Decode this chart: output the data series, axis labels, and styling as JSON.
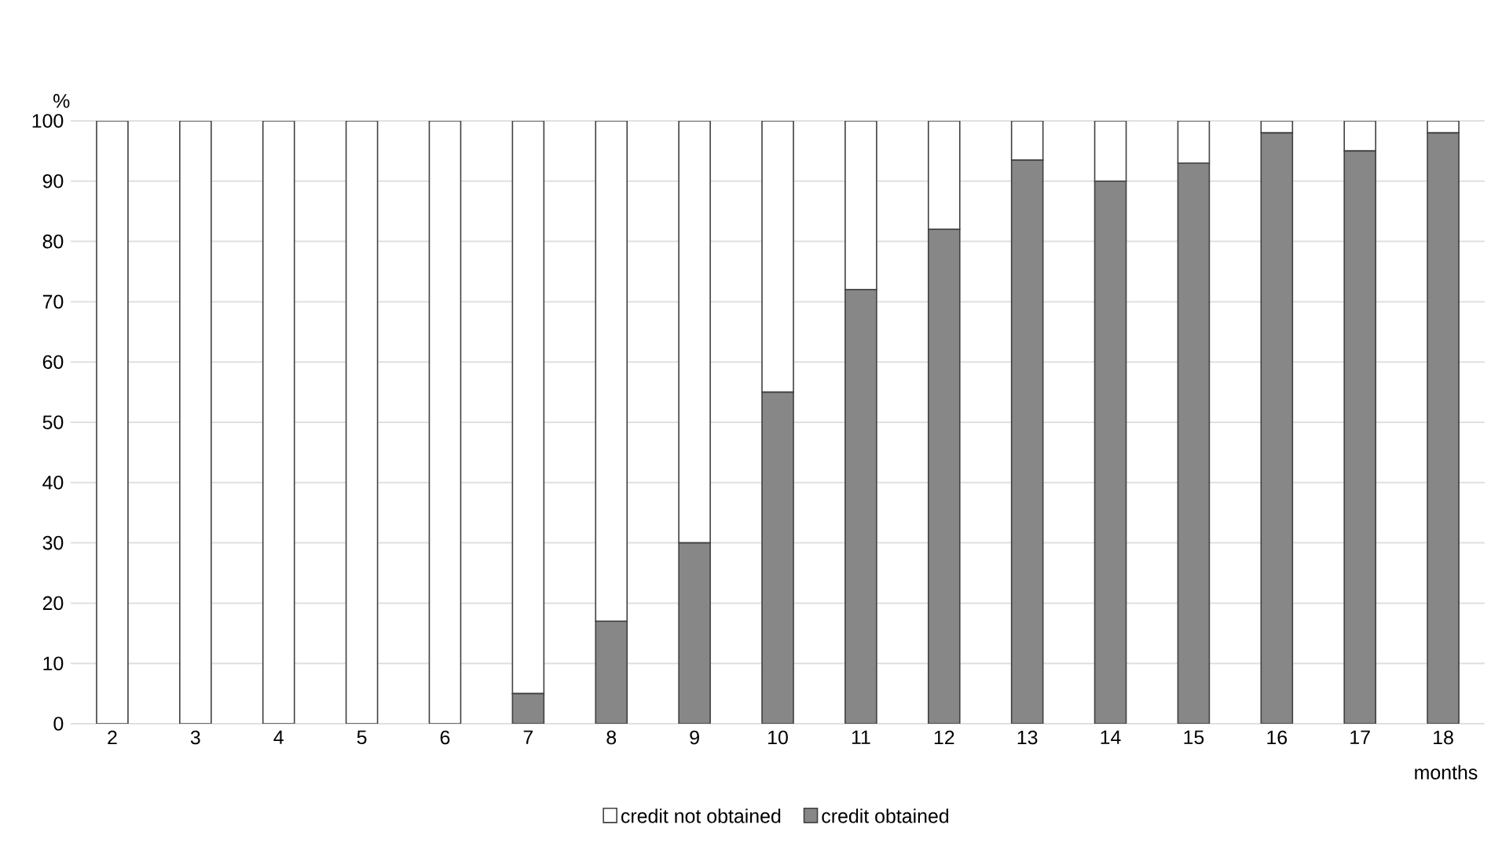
{
  "chart_data": {
    "type": "bar",
    "stacked": true,
    "xlabel": "months",
    "ylabel": "%",
    "categories": [
      "2",
      "3",
      "4",
      "5",
      "6",
      "7",
      "8",
      "9",
      "10",
      "11",
      "12",
      "13",
      "14",
      "15",
      "16",
      "17",
      "18"
    ],
    "series": [
      {
        "name": "credit obtained",
        "color": "#878787",
        "values": [
          0,
          0,
          0,
          0,
          0,
          5,
          17,
          30,
          55,
          72,
          82,
          93.5,
          90,
          93,
          98,
          95,
          98
        ]
      },
      {
        "name": "credit not obtained",
        "color": "#ffffff",
        "values": [
          100,
          100,
          100,
          100,
          100,
          95,
          83,
          70,
          45,
          28,
          18,
          6.5,
          10,
          7,
          2,
          5,
          2
        ]
      }
    ],
    "ylim": [
      0,
      100
    ],
    "yticks": [
      0,
      10,
      20,
      30,
      40,
      50,
      60,
      70,
      80,
      90,
      100
    ],
    "grid": "y",
    "legend": "bottom"
  }
}
